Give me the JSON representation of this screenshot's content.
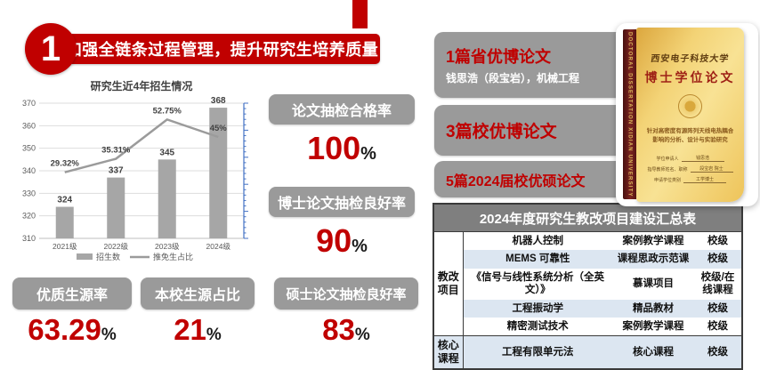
{
  "colors": {
    "accent_red": "#C00000",
    "box_gray": "#9A9A9A",
    "bar_gray": "#A6A6A6",
    "table_header_gray": "#7F7F7F",
    "table_alt_row": "#DCE6F1",
    "secondary_axis_blue": "#4472C4"
  },
  "header": {
    "badge": "1",
    "title": "加强全链条过程管理，提升研究生培养质量"
  },
  "chart_data": {
    "type": "bar",
    "title": "研究生近4年招生情况",
    "categories": [
      "2021级",
      "2022级",
      "2023级",
      "2024级"
    ],
    "series": [
      {
        "name": "招生数",
        "type": "bar",
        "values": [
          324,
          337,
          345,
          368
        ],
        "labels": [
          "324",
          "337",
          "345",
          "368"
        ],
        "color": "#A6A6A6",
        "axis": "left"
      },
      {
        "name": "推免生占比",
        "type": "line",
        "values": [
          29.32,
          35.31,
          52.75,
          45
        ],
        "labels": [
          "29.32%",
          "35.31%",
          "52.75%",
          "45%"
        ],
        "color": "#A6A6A6",
        "axis": "right"
      }
    ],
    "left_axis": {
      "min": 310,
      "max": 370,
      "step": 10
    },
    "right_axis": {
      "min": 0,
      "max": 60,
      "color": "#4472C4",
      "labels_visible": false
    },
    "grid": true,
    "legend_position": "bottom"
  },
  "stats": {
    "pass_rate": {
      "label": "论文抽检合格率",
      "value": "100",
      "unit": "%"
    },
    "phd_good": {
      "label": "博士论文抽检良好率",
      "value": "90",
      "unit": "%"
    },
    "quality_source": {
      "label": "优质生源率",
      "value": "63.29",
      "unit": "%"
    },
    "local_source": {
      "label": "本校生源占比",
      "value": "21",
      "unit": "%"
    },
    "master_good": {
      "label": "硕士论文抽检良好率",
      "value": "83",
      "unit": "%"
    }
  },
  "awards": [
    {
      "title": "1篇省优博论文",
      "subtitle": "钱思浩（段宝岩），机械工程"
    },
    {
      "title": "3篇校优博论文",
      "subtitle": ""
    },
    {
      "title": "5篇2024届校优硕论文",
      "subtitle": ""
    }
  ],
  "thesis_cover": {
    "spine_text": "DOCTORAL DISSERTATION XIDIAN UNIVERSITY",
    "university": "西安电子科技大学",
    "title": "博士学位论文",
    "subject": "针对高密度有源阵列天线电热耦合影响的分析、设计与实验研究",
    "fields": [
      {
        "label": "学位申请人",
        "value": "钱思浩"
      },
      {
        "label": "指导教师姓名、职称",
        "value": "段宝岩 院士"
      },
      {
        "label": "申请学位类别",
        "value": "工学博士"
      }
    ]
  },
  "table": {
    "title": "2024年度研究生教改项目建设汇总表",
    "groups": [
      {
        "label": "教改项目",
        "rows": [
          [
            "机器人控制",
            "案例教学课程",
            "校级"
          ],
          [
            "MEMS 可靠性",
            "课程思政示范课",
            "校级"
          ],
          [
            "《信号与线性系统分析（全英文）》",
            "慕课项目",
            "校级/在线课程"
          ],
          [
            "工程振动学",
            "精品教材",
            "校级"
          ],
          [
            "精密测试技术",
            "案例教学课程",
            "校级"
          ]
        ]
      },
      {
        "label": "核心课程",
        "rows": [
          [
            "工程有限单元法",
            "核心课程",
            "校级"
          ]
        ]
      }
    ]
  }
}
